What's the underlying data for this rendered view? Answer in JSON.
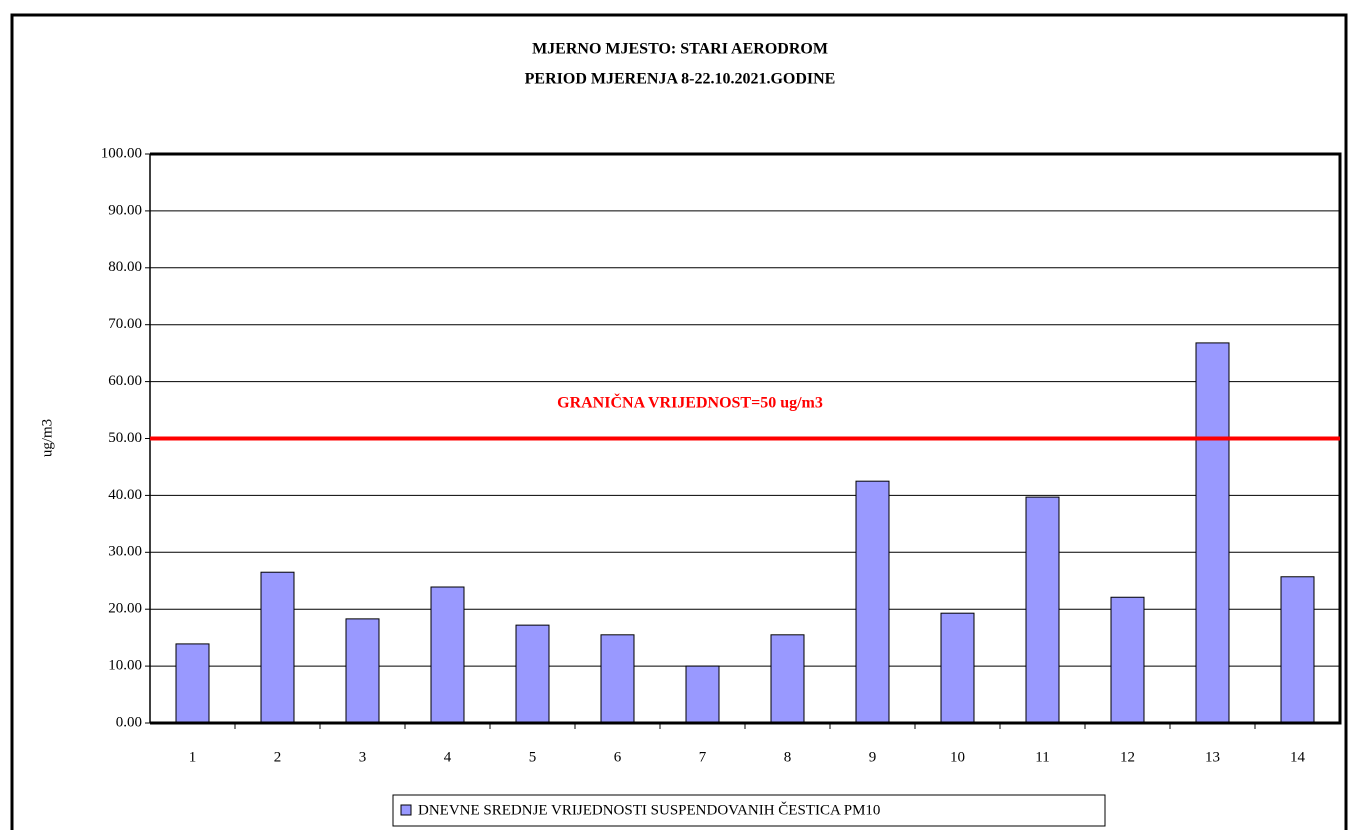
{
  "chart_data": {
    "type": "bar",
    "title": "MJERNO MJESTO: STARI AERODROM",
    "subtitle": "PERIOD MJERENJA 8-22.10.2021.GODINE",
    "y_label": "ug/m3",
    "categories": [
      "1",
      "2",
      "3",
      "4",
      "5",
      "6",
      "7",
      "8",
      "9",
      "10",
      "11",
      "12",
      "13",
      "14"
    ],
    "series": [
      {
        "name": "DNEVNE SREDNJE VRIJEDNOSTI SUSPENDOVANIH ČESTICA PM10",
        "color": "#9999ff",
        "values": [
          13.9,
          26.5,
          18.3,
          23.9,
          17.2,
          15.5,
          10.0,
          15.5,
          42.5,
          19.3,
          39.7,
          22.1,
          66.8,
          25.7
        ]
      }
    ],
    "ylim": [
      0,
      100
    ],
    "yticks": [
      {
        "value": 0,
        "label": "0.00"
      },
      {
        "value": 10,
        "label": "10.00"
      },
      {
        "value": 20,
        "label": "20.00"
      },
      {
        "value": 30,
        "label": "30.00"
      },
      {
        "value": 40,
        "label": "40.00"
      },
      {
        "value": 50,
        "label": "50.00"
      },
      {
        "value": 60,
        "label": "60.00"
      },
      {
        "value": 70,
        "label": "70.00"
      },
      {
        "value": 80,
        "label": "80.00"
      },
      {
        "value": 90,
        "label": "90.00"
      },
      {
        "value": 100,
        "label": "100.00"
      }
    ],
    "grid": true,
    "threshold": {
      "value": 50,
      "color": "#ff0000",
      "label": "GRANIČNA VRIJEDNOST=50 ug/m3"
    },
    "legend": "bottom"
  }
}
